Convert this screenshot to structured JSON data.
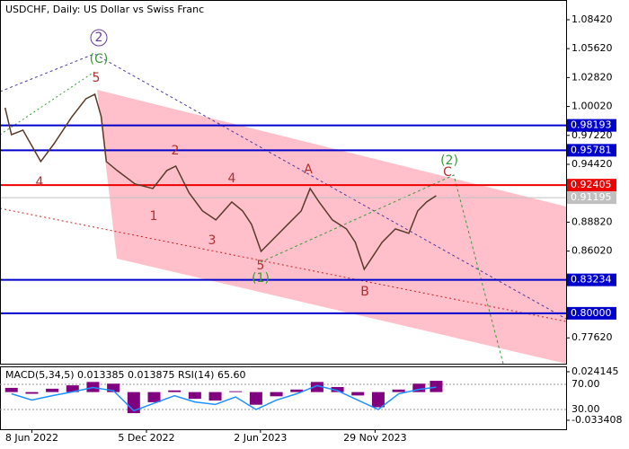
{
  "chart_data": [
    {
      "type": "line",
      "title": "USDCHF, Daily:  US Dollar vs Swiss Franc",
      "color": "#5a3a2a",
      "x": [
        "2022-04-27",
        "2022-05-07",
        "2022-05-25",
        "2022-06-22",
        "2022-07-13",
        "2022-08-10",
        "2022-09-01",
        "2022-09-15",
        "2022-09-25",
        "2022-10-03",
        "2022-10-20",
        "2022-11-17",
        "2022-12-15",
        "2023-01-06",
        "2023-01-20",
        "2023-02-10",
        "2023-03-03",
        "2023-03-24",
        "2023-04-18",
        "2023-05-05",
        "2023-05-19",
        "2023-06-03",
        "2023-06-24",
        "2023-07-15",
        "2023-08-05",
        "2023-08-19",
        "2023-09-02",
        "2023-09-23",
        "2023-10-15",
        "2023-10-29",
        "2023-11-12",
        "2023-11-26",
        "2023-12-10",
        "2023-12-31",
        "2024-01-21",
        "2024-02-04",
        "2024-02-18",
        "2024-03-04"
      ],
      "values": [
        0.999,
        0.9729,
        0.9773,
        0.9469,
        0.9643,
        0.9903,
        1.0077,
        1.0121,
        0.9903,
        0.9469,
        0.9382,
        0.9252,
        0.9208,
        0.9382,
        0.9425,
        0.9165,
        0.8991,
        0.8904,
        0.9078,
        0.8991,
        0.8861,
        0.86,
        0.873,
        0.8861,
        0.8991,
        0.9208,
        0.9078,
        0.8904,
        0.8817,
        0.8687,
        0.8426,
        0.8556,
        0.8687,
        0.8817,
        0.8774,
        0.8991,
        0.9078,
        0.9139
      ],
      "xlim": [
        "2022-04-19",
        "2024-09-24"
      ],
      "xticks": [
        {
          "value": "2022-06-08",
          "label": "8 Jun 2022"
        },
        {
          "value": "2022-12-05",
          "label": "5 Dec 2022"
        },
        {
          "value": "2023-06-02",
          "label": "2 Jun 2023"
        },
        {
          "value": "2023-11-29",
          "label": "29 Nov 2023"
        }
      ],
      "ylim": [
        0.7512,
        1.1033
      ],
      "yticks": [
        {
          "value": 1.0842,
          "label": "1.08420"
        },
        {
          "value": 1.0562,
          "label": "1.05620"
        },
        {
          "value": 1.0282,
          "label": "1.02820"
        },
        {
          "value": 1.0002,
          "label": "1.00020"
        },
        {
          "value": 0.9722,
          "label": "0.97220"
        },
        {
          "value": 0.9442,
          "label": "0.94420"
        },
        {
          "value": 0.8882,
          "label": "0.88820"
        },
        {
          "value": 0.8602,
          "label": "0.86020"
        },
        {
          "value": 0.7762,
          "label": "0.77620"
        }
      ],
      "levels": [
        {
          "value": 0.98193,
          "label": "0.98193",
          "color": "#0000cc"
        },
        {
          "value": 0.95781,
          "label": "0.95781",
          "color": "#0000cc"
        },
        {
          "value": 0.92405,
          "label": "0.92405",
          "color": "#ee0000"
        },
        {
          "value": 0.91195,
          "label": "0.91195",
          "color": "#c0c0c0"
        },
        {
          "value": 0.83234,
          "label": "0.83234",
          "color": "#0000cc"
        },
        {
          "value": 0.8,
          "label": "0.80000",
          "color": "#0000cc"
        }
      ],
      "annotations": [
        "2",
        "(C)",
        "5",
        "4",
        "2",
        "1",
        "4",
        "3",
        "5",
        "(1)",
        "A",
        "B",
        "C",
        "(2)"
      ]
    },
    {
      "type": "bar",
      "title": "MACD(5,34,5) 0.013385 0.013875 RSI(14) 65.60",
      "x": [
        "2022-05-07",
        "2022-06-08",
        "2022-07-10",
        "2022-08-11",
        "2022-09-12",
        "2022-10-14",
        "2022-11-15",
        "2022-12-17",
        "2023-01-18",
        "2023-02-19",
        "2023-03-23",
        "2023-04-24",
        "2023-05-26",
        "2023-06-27",
        "2023-07-29",
        "2023-08-30",
        "2023-10-01",
        "2023-11-02",
        "2023-12-04",
        "2024-01-05",
        "2024-02-06",
        "2024-03-04"
      ],
      "series": [
        {
          "type": "bar",
          "color": "#800080",
          "values": [
            0.005,
            -0.002,
            0.004,
            0.008,
            0.012,
            0.01,
            -0.025,
            -0.012,
            0.002,
            -0.008,
            -0.01,
            0.001,
            -0.015,
            -0.005,
            0.003,
            0.012,
            0.006,
            -0.004,
            -0.018,
            0.003,
            0.01,
            0.013385
          ]
        },
        {
          "type": "line",
          "color": "#1e90ff",
          "axis": "y2",
          "values": [
            55,
            45,
            52,
            58,
            65,
            60,
            28,
            40,
            52,
            42,
            38,
            50,
            30,
            45,
            55,
            68,
            60,
            45,
            30,
            55,
            62,
            65.6
          ]
        }
      ],
      "ylim": [
        -0.0441,
        0.0305
      ],
      "yticks": [
        {
          "value": 0.024145,
          "label": "0.024145"
        },
        {
          "value": -0.033408,
          "label": "-0.033408"
        }
      ],
      "y2lim": [
        -1.4,
        98.6
      ],
      "y2ticks": [
        {
          "value": 70,
          "label": "70.00"
        },
        {
          "value": 30,
          "label": "30.00"
        }
      ]
    }
  ]
}
